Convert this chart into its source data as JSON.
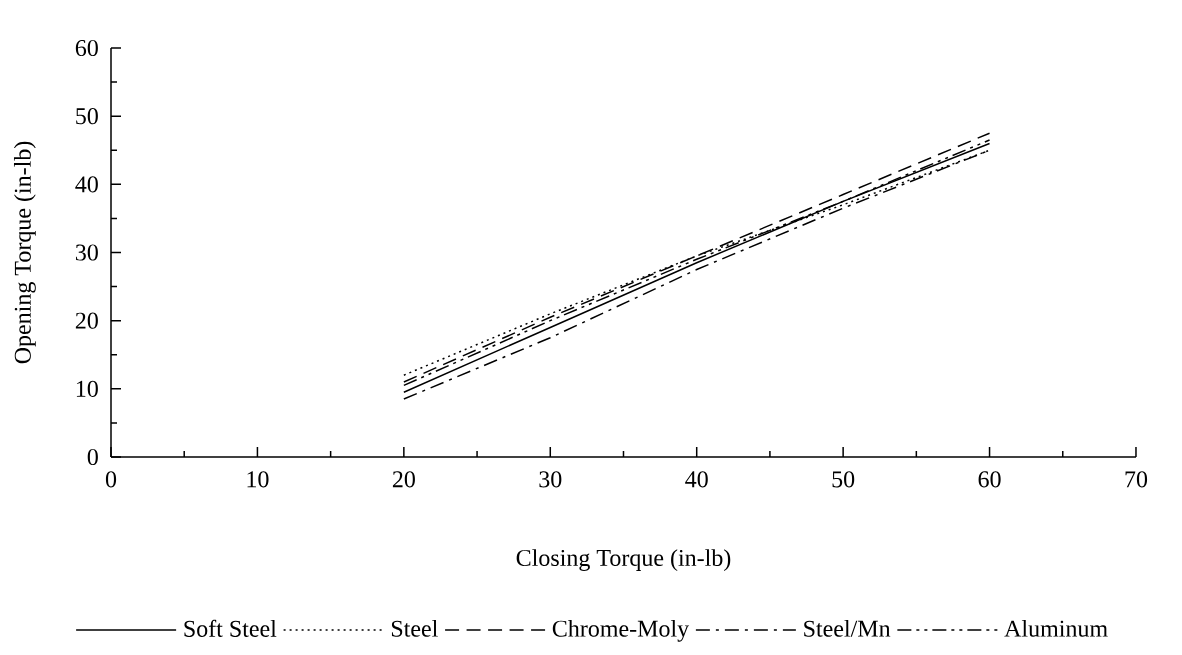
{
  "chart_data": {
    "type": "line",
    "xlabel": "Closing Torque (in-lb)",
    "ylabel": "Opening Torque (in-lb)",
    "x": [
      20,
      30,
      40,
      50,
      60
    ],
    "series": [
      {
        "name": "Soft Steel",
        "color": "#000000",
        "line_style": "solid",
        "values": [
          9.5,
          19,
          28.5,
          37.5,
          46
        ]
      },
      {
        "name": "Steel",
        "color": "#000000",
        "line_style": "dotted",
        "values": [
          12,
          21,
          29.5,
          37,
          45
        ]
      },
      {
        "name": "Chrome-Moly",
        "color": "#000000",
        "line_style": "dashed",
        "values": [
          11,
          20.5,
          29.5,
          38.5,
          47.5
        ]
      },
      {
        "name": "Steel/Mn",
        "color": "#000000",
        "line_style": "dashdot",
        "values": [
          8.5,
          17.5,
          27.5,
          36.5,
          45
        ]
      },
      {
        "name": "Aluminum",
        "color": "#000000",
        "line_style": "dashdotdot",
        "values": [
          10.5,
          20,
          29,
          37.5,
          46.5
        ]
      }
    ],
    "xlim": [
      0,
      70
    ],
    "ylim": [
      0,
      60
    ],
    "xticks": [
      0,
      {
        "value": 5,
        "label": null
      },
      10,
      {
        "value": 15,
        "label": null
      },
      20,
      {
        "value": 25,
        "label": null
      },
      30,
      {
        "value": 35,
        "label": null
      },
      40,
      {
        "value": 45,
        "label": null
      },
      50,
      {
        "value": 55,
        "label": null
      },
      60,
      {
        "value": 65,
        "label": null
      },
      70
    ],
    "yticks": [
      0,
      {
        "value": 5,
        "label": null
      },
      10,
      {
        "value": 15,
        "label": null
      },
      20,
      {
        "value": 25,
        "label": null
      },
      30,
      {
        "value": 35,
        "label": null
      },
      40,
      {
        "value": 45,
        "label": null
      },
      50,
      {
        "value": 55,
        "label": null
      },
      60
    ],
    "grid": false,
    "marker": "none",
    "legend": "bottom"
  }
}
